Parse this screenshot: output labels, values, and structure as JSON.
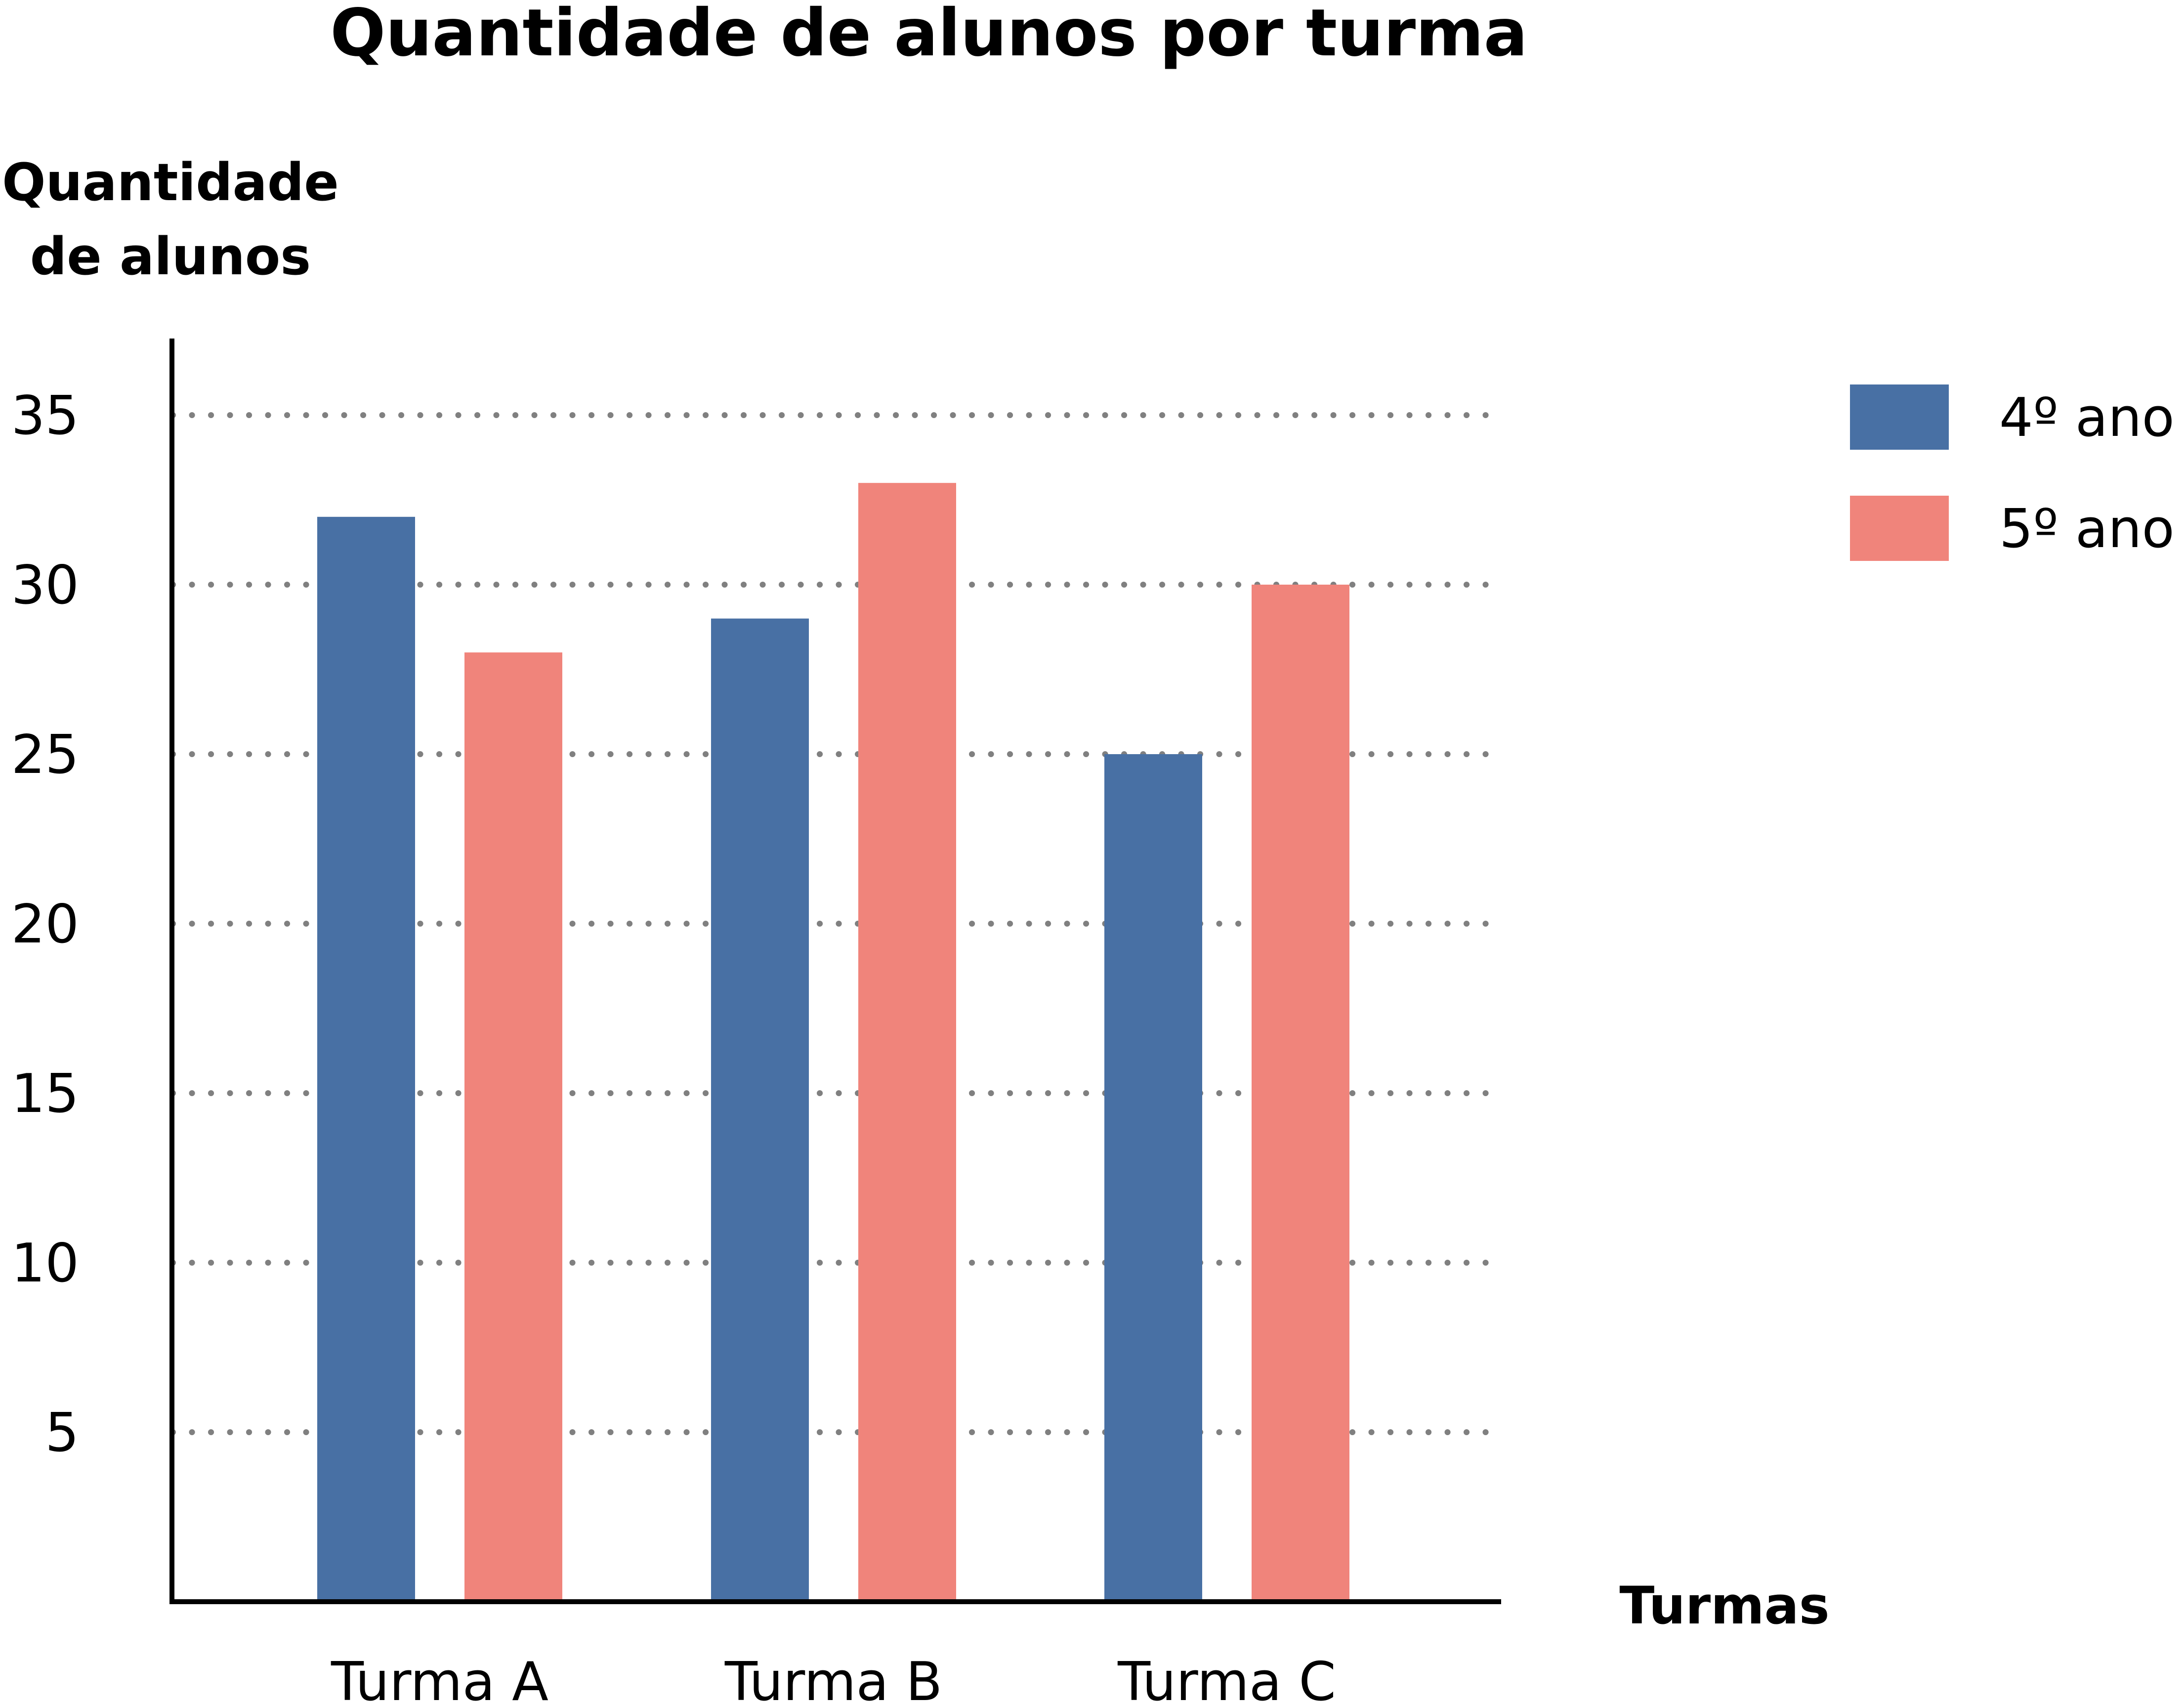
{
  "chart_data": {
    "type": "bar",
    "title": "Quantidade de alunos por turma",
    "ylabel": "Quantidade de alunos",
    "ylabel_lines": [
      "Quantidade",
      "de alunos"
    ],
    "xlabel": "Turmas",
    "categories": [
      "Turma A",
      "Turma B",
      "Turma C"
    ],
    "series": [
      {
        "name": "4º ano",
        "color": "#4870a4",
        "values": [
          32,
          29,
          25
        ]
      },
      {
        "name": "5º ano",
        "color": "#f0847b",
        "values": [
          28,
          33,
          30
        ]
      }
    ],
    "yticks": [
      5,
      10,
      15,
      20,
      25,
      30,
      35
    ],
    "ylim": [
      0,
      37.5
    ],
    "grid": true,
    "grid_style": "dotted",
    "legend_position": "right"
  }
}
